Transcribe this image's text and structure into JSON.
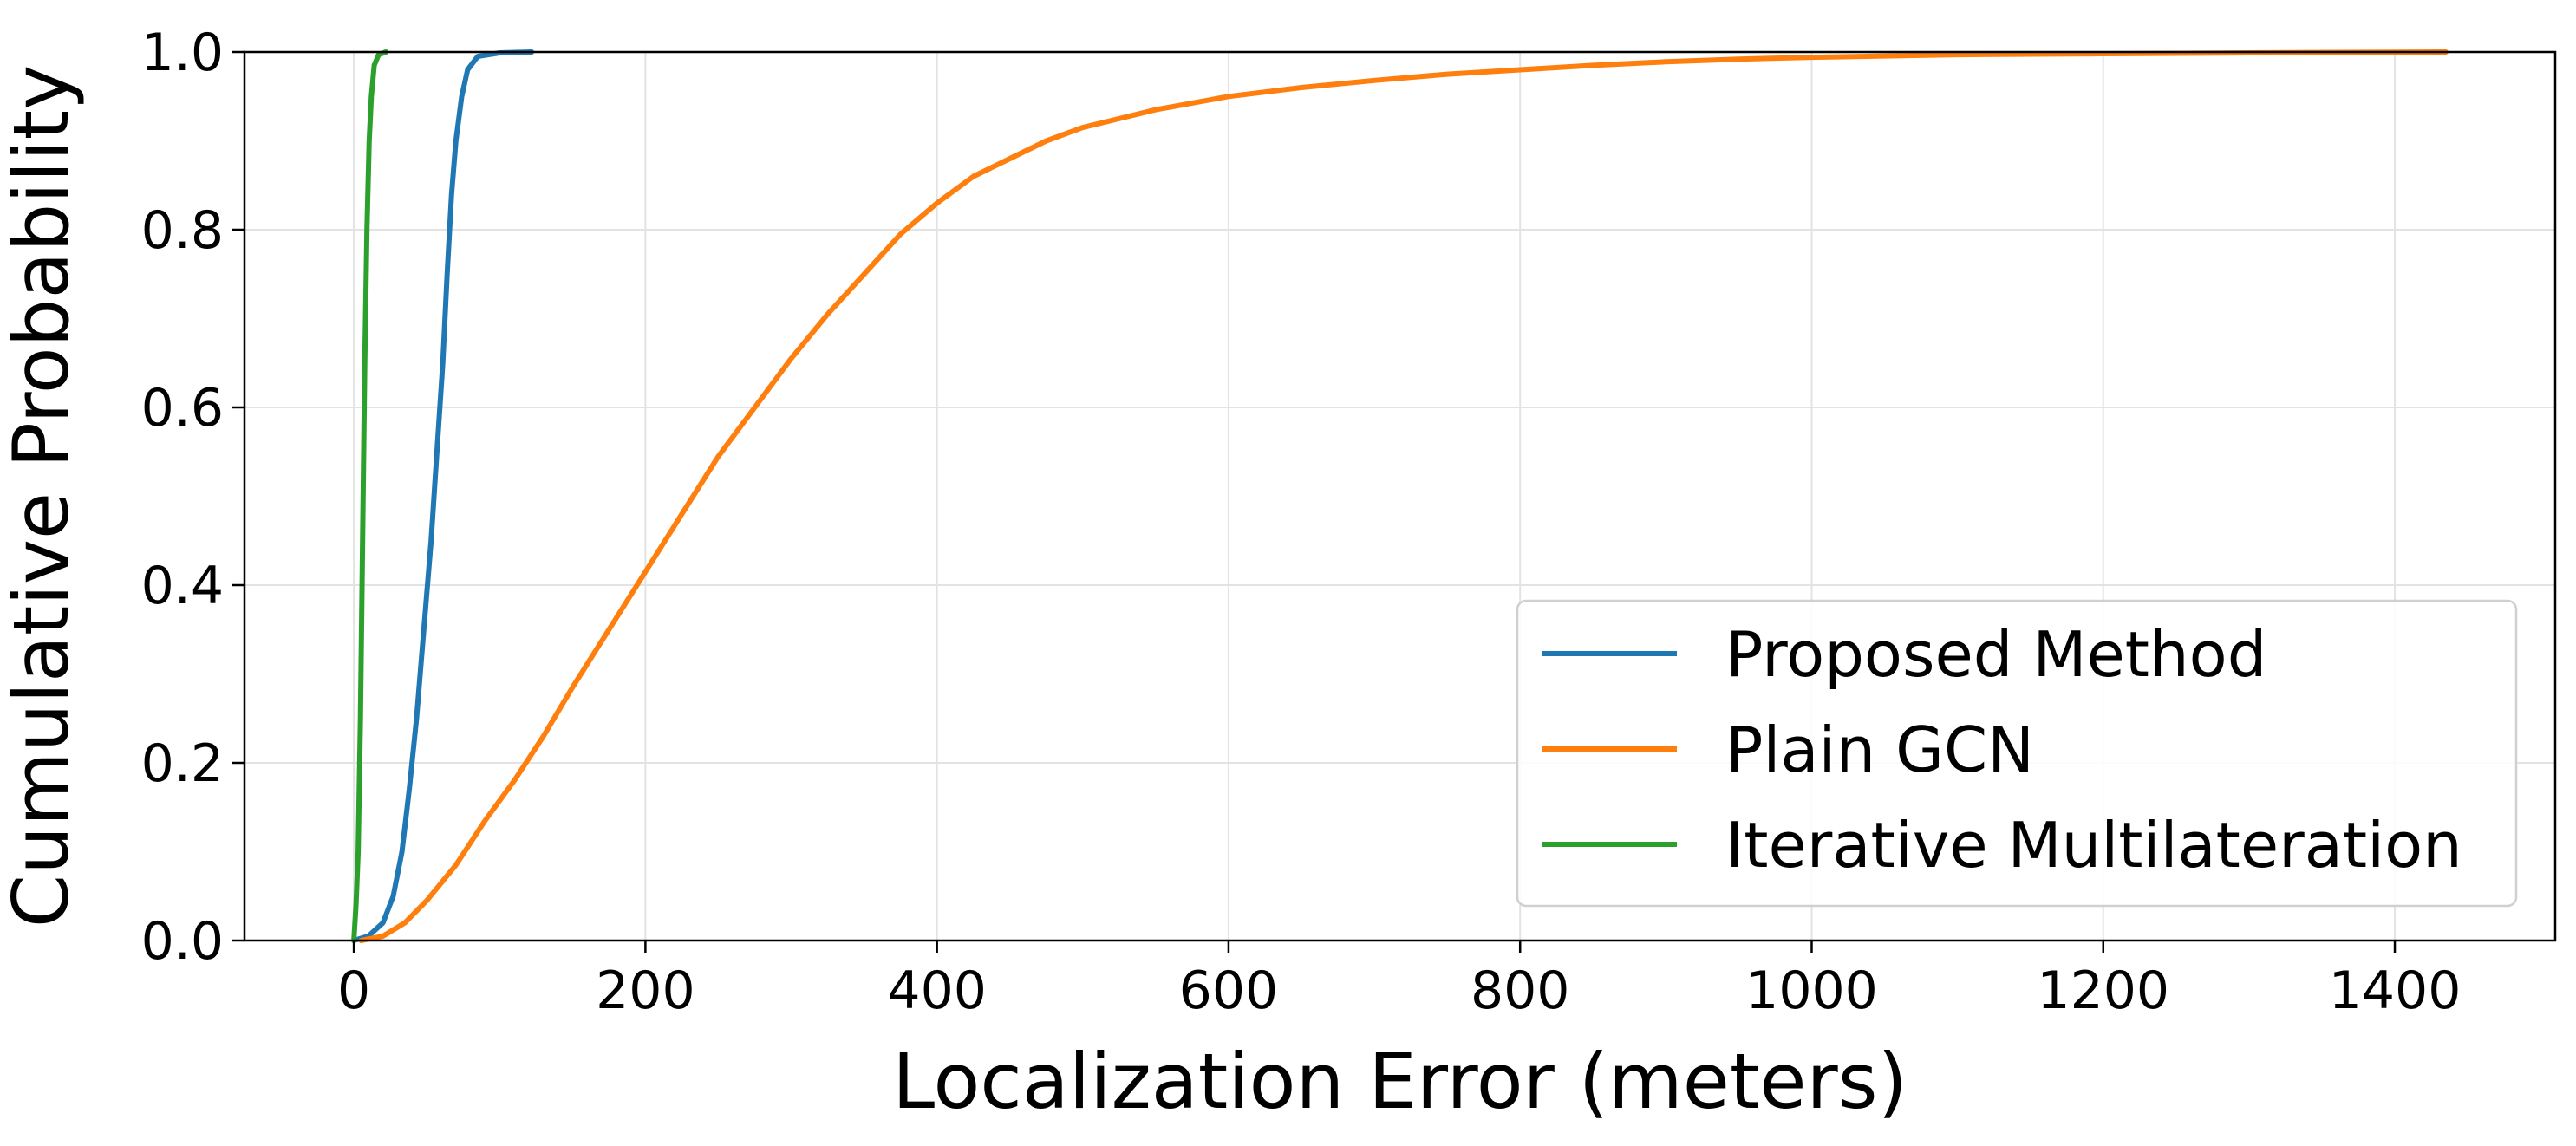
{
  "chart_data": {
    "type": "line",
    "title": "",
    "xlabel": "Localization Error (meters)",
    "ylabel": "Cumulative Probability",
    "xlim": [
      -75,
      1510
    ],
    "ylim": [
      0,
      1
    ],
    "x_ticks": [
      0,
      200,
      400,
      600,
      800,
      1000,
      1200,
      1400
    ],
    "x_tick_labels": [
      "0",
      "200",
      "400",
      "600",
      "800",
      "1000",
      "1200",
      "1400"
    ],
    "y_ticks": [
      0.0,
      0.2,
      0.4,
      0.6,
      0.8,
      1.0
    ],
    "y_tick_labels": [
      "0.0",
      "0.2",
      "0.4",
      "0.6",
      "0.8",
      "1.0"
    ],
    "grid": true,
    "legend_position": "bottom-right",
    "series": [
      {
        "name": "Proposed Method",
        "color": "#1f77b4",
        "points": [
          [
            0,
            0
          ],
          [
            10,
            0.005
          ],
          [
            20,
            0.02
          ],
          [
            27,
            0.05
          ],
          [
            33,
            0.1
          ],
          [
            38,
            0.17
          ],
          [
            43,
            0.25
          ],
          [
            48,
            0.35
          ],
          [
            53,
            0.45
          ],
          [
            57,
            0.55
          ],
          [
            61,
            0.65
          ],
          [
            64,
            0.75
          ],
          [
            67,
            0.84
          ],
          [
            70,
            0.9
          ],
          [
            74,
            0.95
          ],
          [
            78,
            0.98
          ],
          [
            85,
            0.995
          ],
          [
            100,
            0.999
          ],
          [
            122,
            1.0
          ]
        ]
      },
      {
        "name": "Plain GCN",
        "color": "#ff7f0e",
        "points": [
          [
            5,
            0
          ],
          [
            20,
            0.005
          ],
          [
            35,
            0.02
          ],
          [
            50,
            0.045
          ],
          [
            70,
            0.085
          ],
          [
            90,
            0.135
          ],
          [
            110,
            0.18
          ],
          [
            130,
            0.23
          ],
          [
            150,
            0.285
          ],
          [
            175,
            0.35
          ],
          [
            200,
            0.415
          ],
          [
            225,
            0.48
          ],
          [
            250,
            0.545
          ],
          [
            275,
            0.6
          ],
          [
            300,
            0.655
          ],
          [
            325,
            0.705
          ],
          [
            350,
            0.75
          ],
          [
            375,
            0.795
          ],
          [
            400,
            0.83
          ],
          [
            425,
            0.86
          ],
          [
            450,
            0.88
          ],
          [
            475,
            0.9
          ],
          [
            500,
            0.915
          ],
          [
            550,
            0.935
          ],
          [
            600,
            0.95
          ],
          [
            650,
            0.96
          ],
          [
            700,
            0.968
          ],
          [
            750,
            0.975
          ],
          [
            800,
            0.98
          ],
          [
            850,
            0.985
          ],
          [
            900,
            0.989
          ],
          [
            950,
            0.992
          ],
          [
            1000,
            0.994
          ],
          [
            1100,
            0.997
          ],
          [
            1200,
            0.998
          ],
          [
            1300,
            0.999
          ],
          [
            1435,
            1.0
          ]
        ]
      },
      {
        "name": "Iterative Multilateration",
        "color": "#2ca02c",
        "points": [
          [
            0,
            0
          ],
          [
            1.5,
            0.04
          ],
          [
            3,
            0.1
          ],
          [
            4.5,
            0.25
          ],
          [
            6,
            0.45
          ],
          [
            7.5,
            0.65
          ],
          [
            9,
            0.8
          ],
          [
            10.5,
            0.9
          ],
          [
            12,
            0.95
          ],
          [
            14,
            0.985
          ],
          [
            17,
            0.997
          ],
          [
            22,
            1.0
          ]
        ]
      }
    ]
  }
}
